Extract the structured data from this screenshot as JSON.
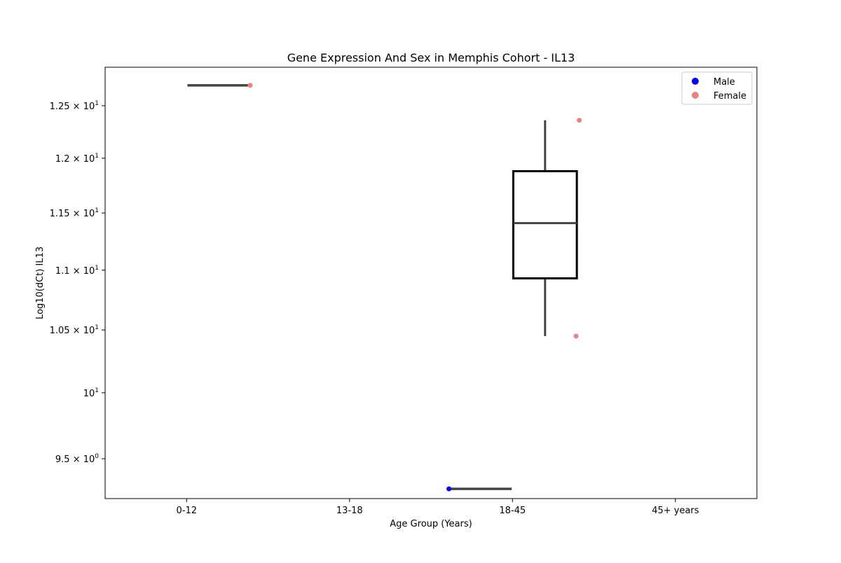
{
  "chart_data": {
    "type": "box",
    "title": "Gene Expression And Sex in Memphis Cohort - IL13",
    "xlabel": "Age Group (Years)",
    "ylabel": "Log10(dCt) IL13",
    "y_scale": "log",
    "ylim": [
      9.21,
      12.88
    ],
    "categories": [
      "0-12",
      "13-18",
      "18-45",
      "45+ years"
    ],
    "y_ticks": [
      {
        "value": 9.5,
        "mantissa": "9.5",
        "base": "10",
        "exp": "0"
      },
      {
        "value": 10,
        "mantissa": "",
        "base": "10",
        "exp": "1"
      },
      {
        "value": 10.5,
        "mantissa": "1.05",
        "base": "10",
        "exp": "1"
      },
      {
        "value": 11,
        "mantissa": "1.1",
        "base": "10",
        "exp": "1"
      },
      {
        "value": 11.5,
        "mantissa": "1.15",
        "base": "10",
        "exp": "1"
      },
      {
        "value": 12,
        "mantissa": "1.2",
        "base": "10",
        "exp": "1"
      },
      {
        "value": 12.5,
        "mantissa": "1.25",
        "base": "10",
        "exp": "1"
      }
    ],
    "boxes": [
      {
        "group": "0-12",
        "sex": "Female",
        "q1": 12.7,
        "median": 12.7,
        "q3": 12.7,
        "whisker_low": 12.7,
        "whisker_high": 12.7
      },
      {
        "group": "18-45",
        "sex": "Male",
        "q1": 9.28,
        "median": 9.28,
        "q3": 9.28,
        "whisker_low": 9.28,
        "whisker_high": 9.28
      },
      {
        "group": "18-45",
        "sex": "Female",
        "q1": 10.93,
        "median": 11.41,
        "q3": 11.88,
        "whisker_low": 10.45,
        "whisker_high": 12.36
      }
    ],
    "points": [
      {
        "group": "0-12",
        "sex": "Female",
        "y": 12.7
      },
      {
        "group": "18-45",
        "sex": "Male",
        "y": 9.28
      },
      {
        "group": "18-45",
        "sex": "Female",
        "y": 12.36
      },
      {
        "group": "18-45",
        "sex": "Female",
        "y": 10.45
      }
    ],
    "legend": {
      "placement": "top-right",
      "entries": [
        {
          "label": "Male",
          "color": "#0000ff"
        },
        {
          "label": "Female",
          "color": "#f08080"
        }
      ]
    },
    "grid": false
  }
}
